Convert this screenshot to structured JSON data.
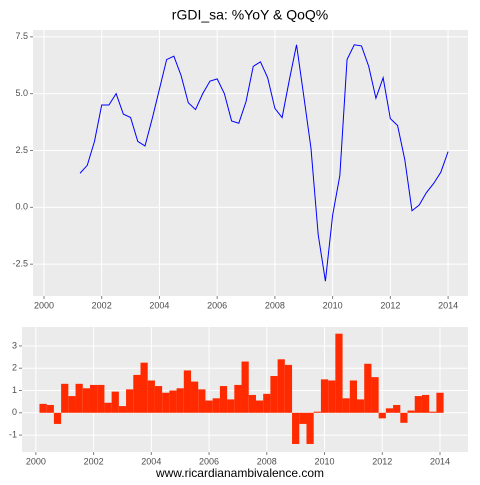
{
  "source": "www.ricardianambivalence.com",
  "chart_data": [
    {
      "type": "line",
      "title": "rGDI_sa: %YoY & QoQ%",
      "color": "#0000ff",
      "grid": true,
      "x": [
        2001.25,
        2001.5,
        2001.75,
        2002,
        2002.25,
        2002.5,
        2002.75,
        2003,
        2003.25,
        2003.5,
        2003.75,
        2004,
        2004.25,
        2004.5,
        2004.75,
        2005,
        2005.25,
        2005.5,
        2005.75,
        2006,
        2006.25,
        2006.5,
        2006.75,
        2007,
        2007.25,
        2007.5,
        2007.75,
        2008,
        2008.25,
        2008.5,
        2008.75,
        2009,
        2009.25,
        2009.5,
        2009.75,
        2010,
        2010.25,
        2010.5,
        2010.75,
        2011,
        2011.25,
        2011.5,
        2011.75,
        2012,
        2012.25,
        2012.5,
        2012.75,
        2013,
        2013.25,
        2013.5,
        2013.75,
        2014
      ],
      "values": [
        1.5,
        1.85,
        2.9,
        4.5,
        4.5,
        5.0,
        4.1,
        3.95,
        2.9,
        2.7,
        3.9,
        5.2,
        6.5,
        6.65,
        5.8,
        4.6,
        4.3,
        5.0,
        5.55,
        5.65,
        5.0,
        3.8,
        3.7,
        4.65,
        6.2,
        6.4,
        5.7,
        4.35,
        3.95,
        5.6,
        7.15,
        4.9,
        2.6,
        -1.2,
        -3.25,
        -0.35,
        1.4,
        6.5,
        7.15,
        7.1,
        6.2,
        4.8,
        5.7,
        3.9,
        3.6,
        2.1,
        -0.15,
        0.1,
        0.65,
        1.05,
        1.55,
        2.45
      ],
      "xlim": [
        1999.62,
        2014.69
      ],
      "xticks": [
        2000,
        2002,
        2004,
        2006,
        2008,
        2010,
        2012,
        2014
      ],
      "ylim": [
        -3.9,
        7.8
      ],
      "yticks": [
        {
          "value": 7.5,
          "label": "7.5"
        },
        {
          "value": 5,
          "label": "5.0"
        },
        {
          "value": 2.5,
          "label": "2.5"
        },
        {
          "value": 0,
          "label": "0.0"
        },
        -2.5
      ]
    },
    {
      "type": "bar",
      "color": "#ff2a00",
      "grid": true,
      "x": [
        2000.25,
        2000.5,
        2000.75,
        2001,
        2001.25,
        2001.5,
        2001.75,
        2002,
        2002.25,
        2002.5,
        2002.75,
        2003,
        2003.25,
        2003.5,
        2003.75,
        2004,
        2004.25,
        2004.5,
        2004.75,
        2005,
        2005.25,
        2005.5,
        2005.75,
        2006,
        2006.25,
        2006.5,
        2006.75,
        2007,
        2007.25,
        2007.5,
        2007.75,
        2008,
        2008.25,
        2008.5,
        2008.75,
        2009,
        2009.25,
        2009.5,
        2009.75,
        2010,
        2010.25,
        2010.5,
        2010.75,
        2011,
        2011.25,
        2011.5,
        2011.75,
        2012,
        2012.25,
        2012.5,
        2012.75,
        2013,
        2013.25,
        2013.5,
        2013.75,
        2014
      ],
      "values": [
        0.4,
        0.35,
        -0.5,
        1.3,
        0.75,
        1.3,
        1.1,
        1.25,
        1.25,
        0.45,
        0.95,
        0.3,
        1.05,
        1.7,
        2.25,
        1.45,
        1.2,
        0.9,
        1.0,
        1.1,
        1.9,
        1.4,
        1.05,
        0.55,
        0.65,
        1.2,
        0.6,
        1.25,
        2.3,
        0.8,
        0.55,
        0.85,
        1.65,
        2.4,
        2.15,
        -1.4,
        -0.5,
        -1.4,
        0.05,
        1.5,
        1.45,
        3.55,
        0.65,
        1.45,
        0.6,
        2.2,
        1.6,
        -0.25,
        0.2,
        0.35,
        -0.45,
        0.1,
        0.75,
        0.8,
        0.05,
        0.9
      ],
      "xlim": [
        1999.52,
        2014.97
      ],
      "xticks": [
        2000,
        2002,
        2004,
        2006,
        2008,
        2010,
        2012,
        2014
      ],
      "ylim": [
        -1.76,
        3.85
      ],
      "yticks": [
        3,
        2,
        1,
        0,
        -1
      ]
    }
  ]
}
